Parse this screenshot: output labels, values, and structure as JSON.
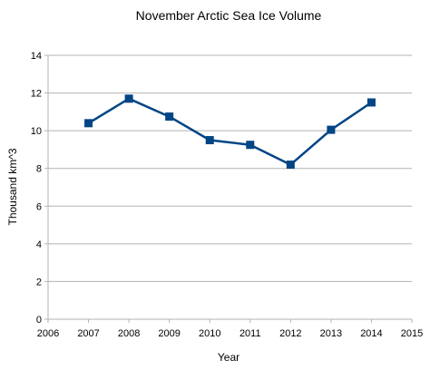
{
  "chart_data": {
    "type": "line",
    "title": "November Arctic Sea Ice Volume",
    "xlabel": "Year",
    "ylabel": "Thousand km^3",
    "xlim": [
      2006,
      2015
    ],
    "ylim": [
      0,
      14
    ],
    "xticks": [
      2006,
      2007,
      2008,
      2009,
      2010,
      2011,
      2012,
      2013,
      2014,
      2015
    ],
    "yticks": [
      0,
      2,
      4,
      6,
      8,
      10,
      12,
      14
    ],
    "grid": true,
    "series": [
      {
        "color": "#004586",
        "marker": "square",
        "x": [
          2007,
          2008,
          2009,
          2010,
          2011,
          2012,
          2013,
          2014
        ],
        "y": [
          10.4,
          11.7,
          10.75,
          9.5,
          9.25,
          8.2,
          10.05,
          11.5
        ]
      }
    ]
  }
}
